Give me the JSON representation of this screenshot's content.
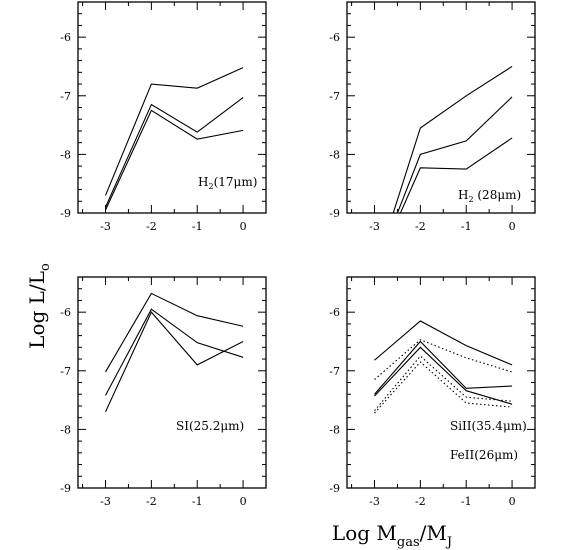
{
  "chart_data": {
    "type": "line",
    "ylabel": {
      "main": "Log L/L",
      "sub": "o"
    },
    "xlabel": {
      "main": "Log M",
      "sub": "gas",
      "rest": "/M",
      "sub2": "J"
    },
    "panels": [
      {
        "id": "h2-17",
        "label": {
          "main": "H",
          "sub": "2",
          "rest": "(17μm)"
        },
        "xlim": [
          -3.6,
          0.5
        ],
        "ylim": [
          -9,
          -5.4
        ],
        "xticks": [
          "-3",
          "-2",
          "-1",
          "0"
        ],
        "yticks": [
          "-9",
          "-8",
          "-7",
          "-6"
        ],
        "x": [
          -3,
          -2,
          -1,
          0
        ],
        "series": [
          {
            "style": "solid",
            "y": [
              -8.7,
              -6.8,
              -6.87,
              -6.52
            ]
          },
          {
            "style": "solid",
            "y": [
              -8.9,
              -7.15,
              -7.62,
              -7.03
            ]
          },
          {
            "style": "solid",
            "y": [
              -8.95,
              -7.25,
              -7.74,
              -7.59
            ]
          }
        ]
      },
      {
        "id": "h2-28",
        "label": {
          "main": "H",
          "sub": "2",
          "rest": " (28μm)"
        },
        "xlim": [
          -3.6,
          0.5
        ],
        "ylim": [
          -9,
          -5.4
        ],
        "xticks": [
          "-3",
          "-2",
          "-1",
          "0"
        ],
        "yticks": [
          "-9",
          "-8",
          "-7",
          "-6"
        ],
        "x": [
          -3,
          -2,
          -1,
          0
        ],
        "series": [
          {
            "style": "solid",
            "y": [
              -10.0,
              -7.55,
              -7.0,
              -6.5
            ]
          },
          {
            "style": "solid",
            "y": [
              -10.0,
              -8.0,
              -7.77,
              -7.02
            ]
          },
          {
            "style": "solid",
            "y": [
              -10.0,
              -8.23,
              -8.25,
              -7.72
            ]
          }
        ]
      },
      {
        "id": "si-25",
        "label": {
          "main": "SI(25.2μm)"
        },
        "xlim": [
          -3.6,
          0.5
        ],
        "ylim": [
          -9,
          -5.4
        ],
        "xticks": [
          "-3",
          "-2",
          "-1",
          "0"
        ],
        "yticks": [
          "-9",
          "-8",
          "-7",
          "-6"
        ],
        "x": [
          -3,
          -2,
          -1,
          0
        ],
        "series": [
          {
            "style": "solid",
            "y": [
              -7.02,
              -5.68,
              -6.06,
              -6.24
            ]
          },
          {
            "style": "solid",
            "y": [
              -7.42,
              -5.95,
              -6.52,
              -6.77
            ]
          },
          {
            "style": "solid",
            "y": [
              -7.7,
              -6.0,
              -6.9,
              -6.5
            ]
          }
        ]
      },
      {
        "id": "sill-feii",
        "label": {
          "main": "SiII(35.4μm)",
          "second": "FeII(26μm)"
        },
        "xlim": [
          -3.6,
          0.5
        ],
        "ylim": [
          -9,
          -5.4
        ],
        "xticks": [
          "-3",
          "-2",
          "-1",
          "0"
        ],
        "yticks": [
          "-9",
          "-8",
          "-7",
          "-6"
        ],
        "x": [
          -3,
          -2,
          -1,
          0
        ],
        "series": [
          {
            "style": "solid",
            "y": [
              -6.82,
              -6.15,
              -6.57,
              -6.9
            ]
          },
          {
            "style": "solid",
            "y": [
              -7.4,
              -6.5,
              -7.3,
              -7.26
            ]
          },
          {
            "style": "solid",
            "y": [
              -7.43,
              -6.6,
              -7.34,
              -7.57
            ]
          },
          {
            "style": "dotted",
            "y": [
              -7.15,
              -6.47,
              -6.78,
              -7.02
            ]
          },
          {
            "style": "dotted",
            "y": [
              -7.68,
              -6.75,
              -7.45,
              -7.52
            ]
          },
          {
            "style": "dotted",
            "y": [
              -7.72,
              -6.85,
              -7.55,
              -7.62
            ]
          }
        ]
      }
    ]
  }
}
